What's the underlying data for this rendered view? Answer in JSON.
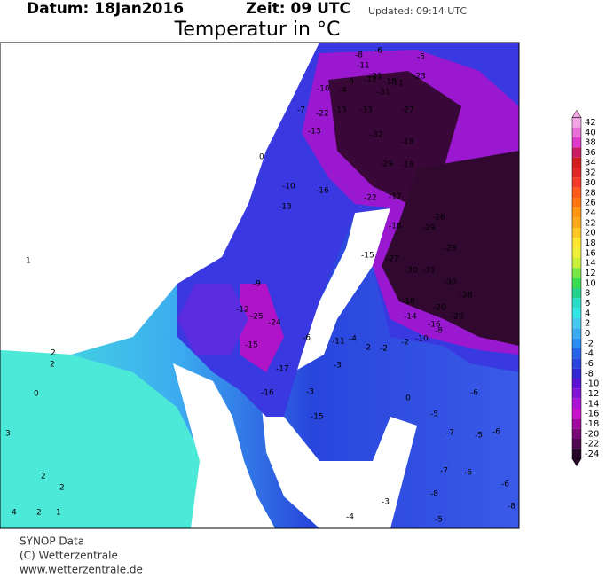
{
  "header": {
    "date": "Datum: 18Jan2016",
    "time": "Zeit: 09 UTC",
    "updated": "Updated: 09:14 UTC",
    "title": "Temperatur in °C"
  },
  "colorbar": {
    "labels": [
      42,
      40,
      38,
      36,
      34,
      32,
      30,
      28,
      26,
      24,
      22,
      20,
      18,
      16,
      14,
      12,
      10,
      8,
      6,
      4,
      2,
      0,
      -2,
      -4,
      -6,
      -8,
      -10,
      -12,
      -14,
      -16,
      -18,
      -20,
      -22,
      -24
    ],
    "colors": [
      "#f2a6e6",
      "#e870d8",
      "#dc3ccc",
      "#c81e64",
      "#d01e1e",
      "#e02828",
      "#f03c28",
      "#ff5a1e",
      "#ff7814",
      "#ff9614",
      "#ffaa1e",
      "#ffc828",
      "#ffe632",
      "#f0f03c",
      "#c8f03c",
      "#78e646",
      "#3cdc50",
      "#28d28c",
      "#28dcc8",
      "#32e6e6",
      "#46c8f0",
      "#3caaf0",
      "#2d8cf0",
      "#2864e6",
      "#2846dc",
      "#3228d2",
      "#5a14d2",
      "#8214d2",
      "#aa14d2",
      "#c814c8",
      "#a00aa0",
      "#780a78",
      "#500a50",
      "#280828"
    ]
  },
  "stations": [
    -8,
    -6,
    -5,
    -11,
    -6,
    -12,
    -18,
    -21,
    -31,
    -10,
    -4,
    -31,
    -23,
    -7,
    -22,
    -13,
    -33,
    -27,
    -13,
    -32,
    -18,
    -29,
    -18,
    0,
    -10,
    -16,
    -22,
    -17,
    -13,
    -26,
    -18,
    -29,
    -29,
    -15,
    -27,
    -30,
    -31,
    -30,
    -28,
    -18,
    -20,
    -14,
    -20,
    -16,
    -8,
    -10,
    -9,
    -12,
    -25,
    -24,
    -15,
    -17,
    -16,
    -6,
    -11,
    -4,
    -2,
    -2,
    -2,
    -15,
    -3,
    -3,
    -6,
    -5,
    -7,
    -5,
    -6,
    -7,
    -6,
    -8,
    -5,
    -6,
    -8,
    -4,
    -3,
    0,
    2,
    2,
    0,
    2,
    2,
    4,
    2,
    1,
    3,
    1
  ],
  "footer": [
    "SYNOP Data",
    "(C) Wetterzentrale",
    "www.wetterzentrale.de"
  ]
}
